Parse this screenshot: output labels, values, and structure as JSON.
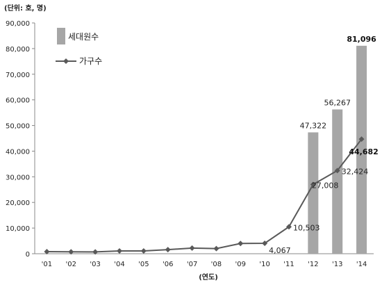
{
  "chart_data": {
    "type": "bar",
    "unit_label": "(단위: 호, 명)",
    "xlabel": "(연도)",
    "categories": [
      "'01",
      "'02",
      "'03",
      "'04",
      "'05",
      "'06",
      "'07",
      "'08",
      "'09",
      "'10",
      "'11",
      "'12",
      "'13",
      "'14"
    ],
    "ylim": [
      0,
      90000
    ],
    "y_ticks": [
      "0",
      "10,000",
      "20,000",
      "30,000",
      "40,000",
      "50,000",
      "60,000",
      "70,000",
      "80,000",
      "90,000"
    ],
    "grid": false,
    "legend_position": "top-left",
    "series": [
      {
        "name": "세대원수",
        "type": "bar",
        "color": "#a6a6a6",
        "values": [
          null,
          null,
          null,
          null,
          null,
          null,
          null,
          null,
          null,
          null,
          null,
          47322,
          56267,
          81096
        ],
        "labels": [
          "",
          "",
          "",
          "",
          "",
          "",
          "",
          "",
          "",
          "",
          "",
          "47,322",
          "56,267",
          "81,096"
        ]
      },
      {
        "name": "가구수",
        "type": "line",
        "color": "#595959",
        "values": [
          800,
          750,
          700,
          1100,
          1100,
          1600,
          2200,
          2000,
          4000,
          4067,
          10503,
          27008,
          32424,
          44682
        ],
        "labels": [
          "",
          "",
          "",
          "",
          "",
          "",
          "",
          "",
          "",
          "4,067",
          "10,503",
          "27,008",
          "32,424",
          "44,682"
        ]
      }
    ]
  }
}
